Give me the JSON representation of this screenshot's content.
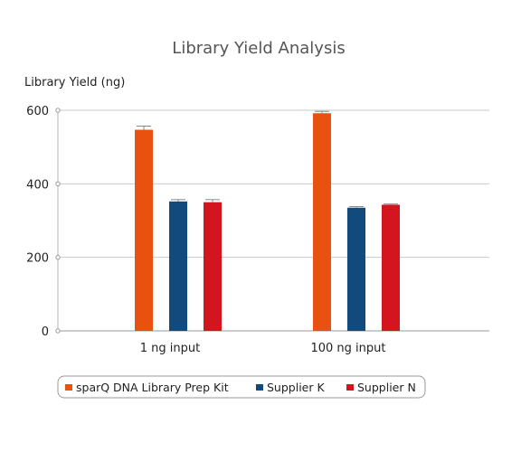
{
  "chart_data": {
    "type": "bar",
    "title": "Library Yield Analysis",
    "ylabel": "Library Yield (ng)",
    "xlabel": "",
    "categories": [
      "1 ng input",
      "100 ng input"
    ],
    "series": [
      {
        "name": "sparQ DNA Library Prep Kit",
        "color": "#e8510f",
        "values": [
          547,
          592
        ],
        "errors": [
          10,
          5
        ]
      },
      {
        "name": "Supplier K",
        "color": "#124a7d",
        "values": [
          352,
          335
        ],
        "errors": [
          5,
          3
        ]
      },
      {
        "name": "Supplier N",
        "color": "#d3151f",
        "values": [
          350,
          343
        ],
        "errors": [
          7,
          2
        ]
      }
    ],
    "ylim": [
      0,
      600
    ],
    "yticks": [
      0,
      200,
      400,
      600
    ],
    "grid": true,
    "legend": "bottom"
  }
}
